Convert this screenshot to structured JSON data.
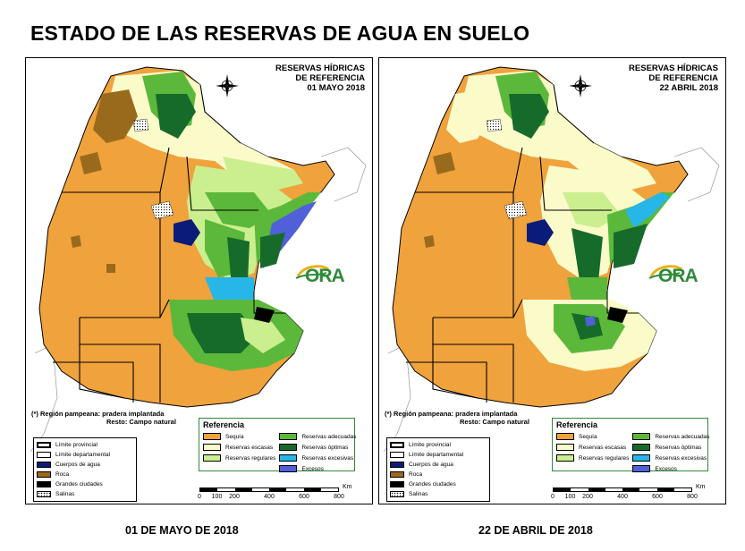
{
  "title": "ESTADO DE LAS RESERVAS DE AGUA EN SUELO",
  "colors": {
    "sequia": "#f0a23c",
    "escasas": "#fbfbc9",
    "regulares": "#cbef8f",
    "adecuadas": "#5cb83a",
    "optimas": "#176b2a",
    "excesivas": "#27b6e8",
    "excesos": "#5060d8",
    "agua": "#0a1c78",
    "roca": "#9a6a1c",
    "ciudades": "#000000",
    "logo": "#2f8a3a"
  },
  "maps": [
    {
      "id": "left",
      "header": [
        "RESERVAS HÍDRICAS",
        "DE REFERENCIA",
        "01 MAYO 2018"
      ],
      "date_caption": "01 DE MAYO DE 2018",
      "dominant_class": "sequia"
    },
    {
      "id": "right",
      "header": [
        "RESERVAS HÍDRICAS",
        "DE REFERENCIA",
        "22 ABRIL 2018"
      ],
      "date_caption": "22 DE ABRIL DE 2018",
      "dominant_class": "sequia"
    }
  ],
  "compass": {
    "n": "N",
    "s": "S",
    "e": "E",
    "o": "O"
  },
  "logo_text": "ORA",
  "note": {
    "line1": "(*) Región pampeana: pradera implantada",
    "line2": "Resto: Campo natural"
  },
  "legend_base": [
    {
      "key": "limite_provincial",
      "label": "Límite provincial",
      "swatch": "boundary-thick"
    },
    {
      "key": "limite_departamental",
      "label": "Límite departamental",
      "swatch": "boundary-thin"
    },
    {
      "key": "agua",
      "label": "Cuerpos de agua",
      "swatch": "#0a1c78"
    },
    {
      "key": "roca",
      "label": "Roca",
      "swatch": "#9a6a1c"
    },
    {
      "key": "ciudades",
      "label": "Grandes ciudades",
      "swatch": "#000000"
    },
    {
      "key": "salinas",
      "label": "Salinas",
      "swatch": "dots"
    }
  ],
  "legend_ref": {
    "title": "Referencia",
    "items": [
      {
        "label": "Sequía",
        "color": "#f0a23c"
      },
      {
        "label": "Reservas adecuadas",
        "color": "#5cb83a"
      },
      {
        "label": "Reservas escasas",
        "color": "#fbfbc9"
      },
      {
        "label": "Reservas óptimas",
        "color": "#176b2a"
      },
      {
        "label": "Reservas regulares",
        "color": "#cbef8f"
      },
      {
        "label": "Reservas excesivas",
        "color": "#27b6e8"
      },
      {
        "label": "",
        "color": ""
      },
      {
        "label": "Excesos",
        "color": "#5060d8"
      }
    ]
  },
  "scale": {
    "unit": "Km",
    "ticks": [
      "0",
      "100",
      "200",
      "400",
      "600",
      "800"
    ],
    "tick_values": [
      0,
      100,
      200,
      400,
      600,
      800
    ]
  }
}
